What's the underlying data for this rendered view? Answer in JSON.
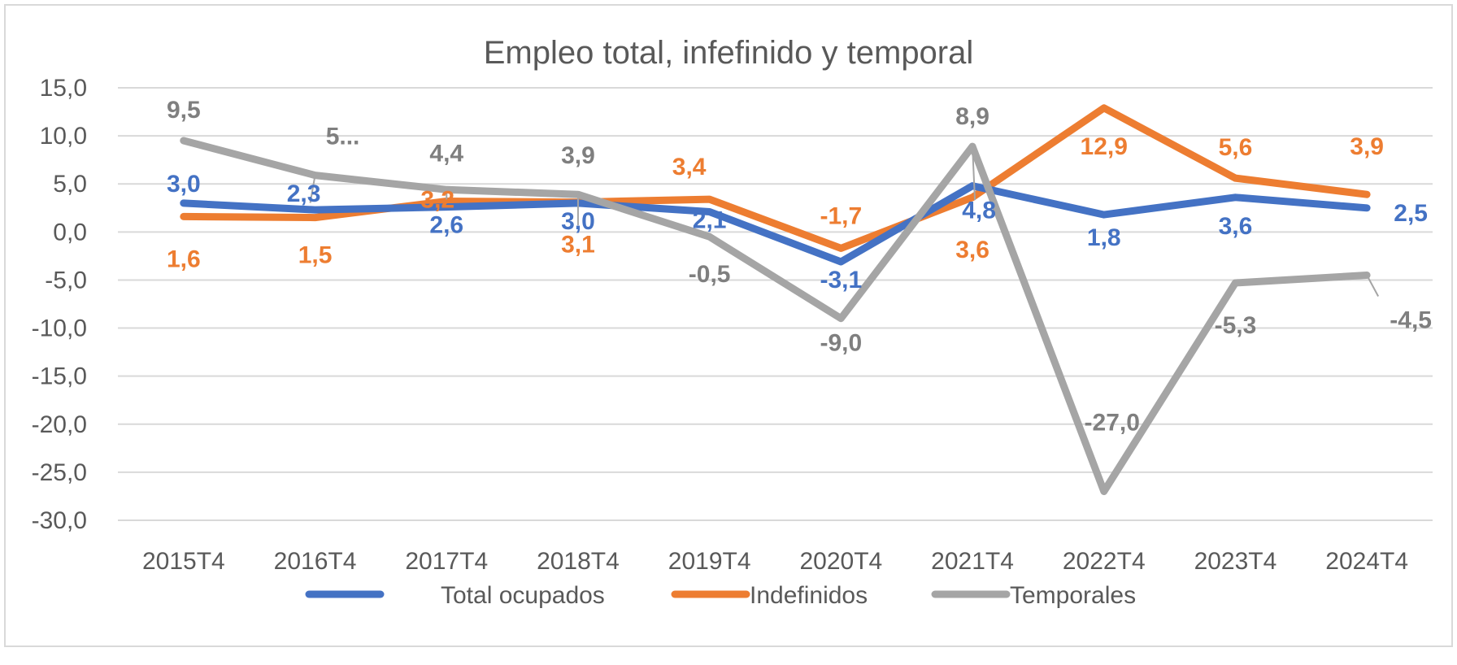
{
  "chart_data": {
    "type": "line",
    "title": "Empleo total, infefinido y temporal",
    "xlabel": "",
    "ylabel": "",
    "ylim": [
      -30,
      15
    ],
    "yticks": [
      "15,0",
      "10,0",
      "5,0",
      "0,0",
      "-5,0",
      "-10,0",
      "-15,0",
      "-20,0",
      "-25,0",
      "-30,0"
    ],
    "ytick_values": [
      15,
      10,
      5,
      0,
      -5,
      -10,
      -15,
      -20,
      -25,
      -30
    ],
    "grid": true,
    "legend": "bottom",
    "categories": [
      "2015T4",
      "2016T4",
      "2017T4",
      "2018T4",
      "2019T4",
      "2020T4",
      "2021T4",
      "2022T4",
      "2023T4",
      "2024T4"
    ],
    "series": [
      {
        "name": "Total ocupados",
        "color": "#4472c4",
        "values": [
          3.0,
          2.3,
          2.6,
          3.0,
          2.1,
          -3.1,
          4.8,
          1.8,
          3.6,
          2.5
        ],
        "labels": [
          "3,0",
          "2,3",
          "2,6",
          "3,0",
          "2,1",
          "-3,1",
          "4,8",
          "1,8",
          "3,6",
          "2,5"
        ]
      },
      {
        "name": "Indefinidos",
        "color": "#ed7d31",
        "values": [
          1.6,
          1.5,
          3.2,
          3.1,
          3.4,
          -1.7,
          3.6,
          12.9,
          5.6,
          3.9
        ],
        "labels": [
          "1,6",
          "1,5",
          "3,2",
          "3,1",
          "3,4",
          "-1,7",
          "3,6",
          "12,9",
          "5,6",
          "3,9"
        ]
      },
      {
        "name": "Temporales",
        "color": "#a5a5a5",
        "values": [
          9.5,
          5.9,
          4.4,
          3.9,
          -0.5,
          -9.0,
          8.9,
          -27.0,
          -5.3,
          -4.5
        ],
        "labels": [
          "9,5",
          "5...",
          "4,4",
          "3,9",
          "-0,5",
          "-9,0",
          "8,9",
          "-27,0",
          "-5,3",
          "-4,5"
        ]
      }
    ]
  },
  "colors": {
    "grid": "#d9d9d9",
    "axis_text": "#595959",
    "title": "#595959",
    "temporales_label": "#7f7f7f",
    "border": "#d9d9d9"
  }
}
